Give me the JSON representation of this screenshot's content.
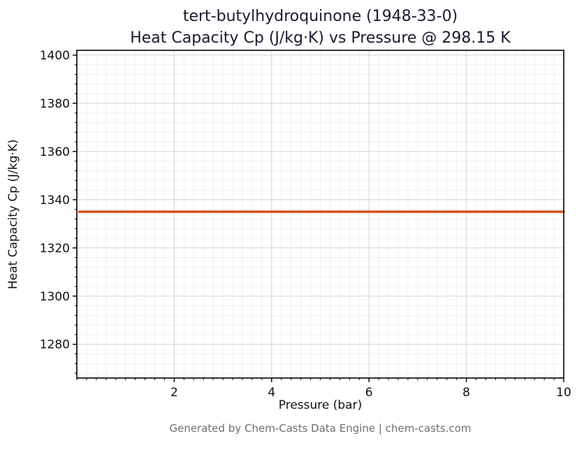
{
  "chart_data": {
    "type": "line",
    "title_line1": "tert-butylhydroquinone (1948-33-0)",
    "title_line2": "Heat Capacity Cp (J/kg·K) vs Pressure @ 298.15 K",
    "xlabel": "Pressure (bar)",
    "ylabel": "Heat Capacity Cp (J/kg·K)",
    "footer": "Generated by Chem-Casts Data Engine | chem-casts.com",
    "xlim": [
      0,
      10
    ],
    "ylim": [
      1266,
      1402
    ],
    "xticks": [
      2,
      4,
      6,
      8,
      10
    ],
    "yticks": [
      1280,
      1300,
      1320,
      1340,
      1360,
      1380,
      1400
    ],
    "x_minor_step": 0.2,
    "y_minor_step": 4,
    "grid": true,
    "legend": "none",
    "series": [
      {
        "name": "Heat Capacity Cp @ 298.15 K",
        "x": [
          0.05,
          10
        ],
        "y": [
          1335,
          1335
        ],
        "color": "#d2501e",
        "width": 3.5
      }
    ],
    "colors": {
      "minor_grid": "#ebebeb",
      "major_grid": "#d6d6d6",
      "spine": "#000000",
      "tick_text": "#111111",
      "title_text": "#1a1a2e",
      "footer_text": "#6e6e6e"
    }
  }
}
